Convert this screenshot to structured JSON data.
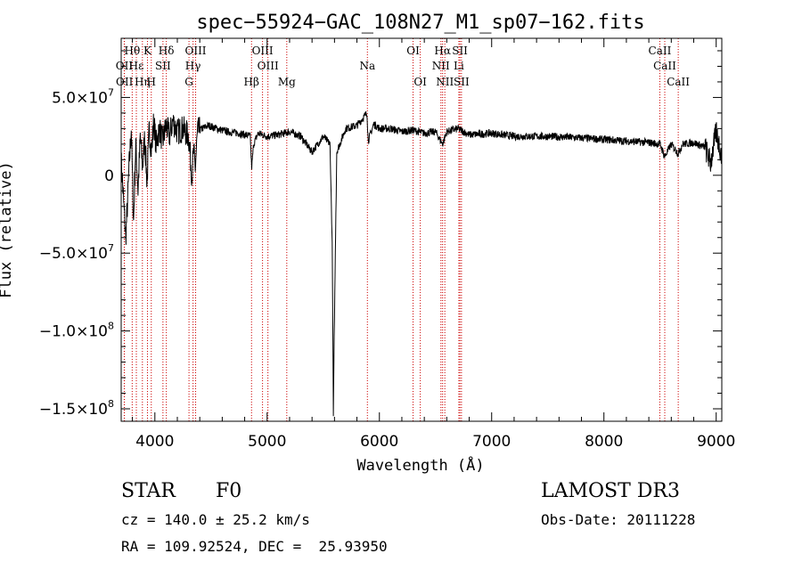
{
  "chart_data": {
    "type": "line",
    "title": "spec−55924−GAC_108N27_M1_sp07−162.fits",
    "xlabel": "Wavelength (Å)",
    "ylabel": "Flux (relative)",
    "xlim": [
      3700,
      9050
    ],
    "ylim": [
      -158000000,
      88000000
    ],
    "x_ticks": [
      4000,
      5000,
      6000,
      7000,
      8000,
      9000
    ],
    "x_tick_labels": [
      "4000",
      "5000",
      "6000",
      "7000",
      "8000",
      "9000"
    ],
    "y_ticks": [
      {
        "value": 50000000,
        "mantissa": "5.0×10",
        "exp": "7"
      },
      {
        "value": 0,
        "mantissa": "0",
        "exp": ""
      },
      {
        "value": -50000000,
        "mantissa": "−5.0×10",
        "exp": "7"
      },
      {
        "value": -100000000,
        "mantissa": "−1.0×10",
        "exp": "8"
      },
      {
        "value": -150000000,
        "mantissa": "−1.5×10",
        "exp": "8"
      }
    ],
    "spectrum_anchor_points": {
      "wavelength": [
        3700,
        3720,
        3740,
        3755,
        3770,
        3790,
        3810,
        3830,
        3850,
        3870,
        3890,
        3910,
        3930,
        3950,
        3970,
        3990,
        4010,
        4040,
        4070,
        4100,
        4130,
        4160,
        4200,
        4250,
        4300,
        4330,
        4345,
        4360,
        4380,
        4420,
        4480,
        4550,
        4650,
        4750,
        4850,
        4862,
        4880,
        4920,
        5000,
        5100,
        5200,
        5300,
        5400,
        5500,
        5560,
        5580,
        5590,
        5600,
        5620,
        5700,
        5800,
        5890,
        5900,
        5950,
        6000,
        6100,
        6200,
        6300,
        6400,
        6500,
        6563,
        6600,
        6700,
        6800,
        7000,
        7200,
        7500,
        7800,
        8000,
        8200,
        8400,
        8500,
        8542,
        8600,
        8662,
        8700,
        8800,
        8900,
        8950,
        9000,
        9050
      ],
      "flux": [
        10000000,
        -15000000,
        -40000000,
        -20000000,
        5000000,
        30000000,
        -30000000,
        20000000,
        -10000000,
        25000000,
        5000000,
        25000000,
        -5000000,
        30000000,
        15000000,
        35000000,
        20000000,
        30000000,
        22000000,
        32000000,
        25000000,
        35000000,
        28000000,
        30000000,
        25000000,
        0,
        15000000,
        5000000,
        28000000,
        30000000,
        32000000,
        30000000,
        28000000,
        27000000,
        25000000,
        5000000,
        20000000,
        27000000,
        25000000,
        26000000,
        28000000,
        25000000,
        15000000,
        25000000,
        20000000,
        -45000000,
        -155000000,
        -90000000,
        15000000,
        30000000,
        32000000,
        40000000,
        22000000,
        33000000,
        30000000,
        30000000,
        28000000,
        29000000,
        27000000,
        28000000,
        20000000,
        28000000,
        30000000,
        26000000,
        27000000,
        25000000,
        25000000,
        24000000,
        23000000,
        22000000,
        21000000,
        20000000,
        12000000,
        20000000,
        14000000,
        20000000,
        21000000,
        18000000,
        8000000,
        28000000,
        12000000
      ]
    },
    "spectral_lines": [
      {
        "label": "Hθ",
        "wavelength": 3798,
        "row": 1
      },
      {
        "label": "K",
        "wavelength": 3934,
        "row": 1
      },
      {
        "label": "Hδ",
        "wavelength": 4102,
        "row": 1
      },
      {
        "label": "OIII",
        "wavelength": 4363,
        "row": 1
      },
      {
        "label": "OIII",
        "wavelength": 4959,
        "row": 1
      },
      {
        "label": "OI",
        "wavelength": 6300,
        "row": 1
      },
      {
        "label": "Hα",
        "wavelength": 6563,
        "row": 1
      },
      {
        "label": "SII",
        "wavelength": 6717,
        "row": 1
      },
      {
        "label": "CaII",
        "wavelength": 8498,
        "row": 1
      },
      {
        "label": "OII",
        "wavelength": 3727,
        "row": 2
      },
      {
        "label": "Hε",
        "wavelength": 3835,
        "row": 2
      },
      {
        "label": "SII",
        "wavelength": 4072,
        "row": 2
      },
      {
        "label": "Hγ",
        "wavelength": 4340,
        "row": 2
      },
      {
        "label": "OIII",
        "wavelength": 5007,
        "row": 2
      },
      {
        "label": "Na",
        "wavelength": 5893,
        "row": 2
      },
      {
        "label": "NII",
        "wavelength": 6548,
        "row": 2
      },
      {
        "label": "Li",
        "wavelength": 6708,
        "row": 2
      },
      {
        "label": "CaII",
        "wavelength": 8542,
        "row": 2
      },
      {
        "label": "OII",
        "wavelength": 3729,
        "row": 3
      },
      {
        "label": "Hη",
        "wavelength": 3889,
        "row": 3
      },
      {
        "label": "H",
        "wavelength": 3968,
        "row": 3
      },
      {
        "label": "G",
        "wavelength": 4304,
        "row": 3
      },
      {
        "label": "Hβ",
        "wavelength": 4861,
        "row": 3
      },
      {
        "label": "Mg",
        "wavelength": 5175,
        "row": 3
      },
      {
        "label": "OI",
        "wavelength": 6364,
        "row": 3
      },
      {
        "label": "NII",
        "wavelength": 6583,
        "row": 3
      },
      {
        "label": "SII",
        "wavelength": 6731,
        "row": 3
      },
      {
        "label": "CaII",
        "wavelength": 8662,
        "row": 3
      }
    ]
  },
  "info": {
    "class_label": "STAR",
    "subclass": "F0",
    "survey": "LAMOST DR3",
    "cz": "cz = 140.0 ± 25.2 km/s",
    "obs_date": "Obs-Date: 20111228",
    "coords": "RA = 109.92524, DEC =  25.93950"
  },
  "colors": {
    "line_marker": "#cc0000",
    "spectrum": "#000000"
  }
}
